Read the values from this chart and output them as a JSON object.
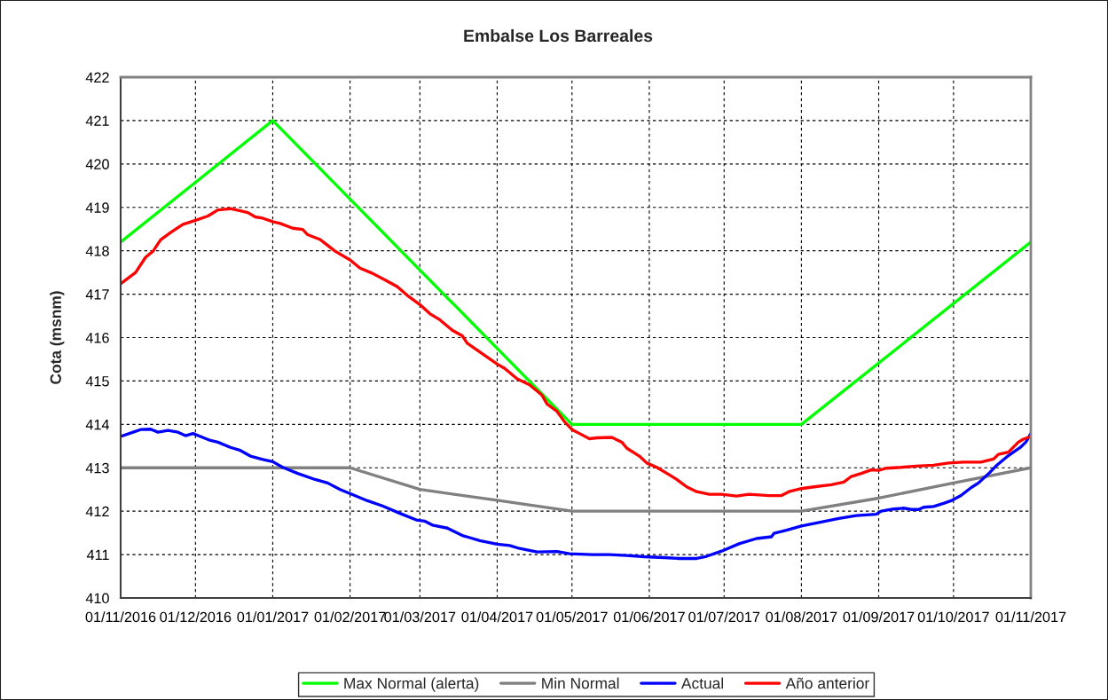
{
  "chart_data": {
    "type": "line",
    "title": "Embalse Los Barreales",
    "ylabel": "Cota (msnm)",
    "xlim": [
      "2016-11-01",
      "2017-11-01"
    ],
    "xticks": [
      {
        "value": "2016-11-01",
        "label": "01/11/2016"
      },
      {
        "value": "2016-12-01",
        "label": "01/12/2016"
      },
      {
        "value": "2017-01-01",
        "label": "01/01/2017"
      },
      {
        "value": "2017-02-01",
        "label": "01/02/2017"
      },
      {
        "value": "2017-03-01",
        "label": "01/03/2017"
      },
      {
        "value": "2017-04-01",
        "label": "01/04/2017"
      },
      {
        "value": "2017-05-01",
        "label": "01/05/2017"
      },
      {
        "value": "2017-06-01",
        "label": "01/06/2017"
      },
      {
        "value": "2017-07-01",
        "label": "01/07/2017"
      },
      {
        "value": "2017-08-01",
        "label": "01/08/2017"
      },
      {
        "value": "2017-09-01",
        "label": "01/09/2017"
      },
      {
        "value": "2017-10-01",
        "label": "01/10/2017"
      },
      {
        "value": "2017-11-01",
        "label": "01/11/2017"
      }
    ],
    "ylim": [
      410,
      422
    ],
    "yticks": [
      410,
      411,
      412,
      413,
      414,
      415,
      416,
      417,
      418,
      419,
      420,
      421,
      422
    ],
    "grid": true,
    "legend": "bottom",
    "line_style": "solid",
    "series": [
      {
        "name": "Max Normal (alerta)",
        "color": "#00ff00",
        "x": [
          "2016-11-01",
          "2017-01-01",
          "2017-05-01",
          "2017-08-01",
          "2017-11-01"
        ],
        "values": [
          418.2,
          421,
          414,
          414,
          418.2
        ]
      },
      {
        "name": "Min Normal",
        "color": "#808080",
        "x": [
          "2016-11-01",
          "2017-02-01",
          "2017-03-01",
          "2017-04-01",
          "2017-05-01",
          "2017-08-01",
          "2017-09-01",
          "2017-10-01",
          "2017-11-01"
        ],
        "values": [
          413,
          413,
          412.5,
          412.25,
          412,
          412,
          412.3,
          412.65,
          413
        ]
      },
      {
        "name": "Actual",
        "color": "#0000ff",
        "x": [
          "2016-11-01",
          "2016-11-06",
          "2016-11-09",
          "2016-11-13",
          "2016-11-16",
          "2016-11-20",
          "2016-11-24",
          "2016-11-27",
          "2016-11-30",
          "2016-12-03",
          "2016-12-07",
          "2016-12-10",
          "2016-12-15",
          "2016-12-19",
          "2016-12-23",
          "2016-12-28",
          "2017-01-01",
          "2017-01-05",
          "2017-01-11",
          "2017-01-18",
          "2017-01-23",
          "2017-01-28",
          "2017-02-02",
          "2017-02-08",
          "2017-02-14",
          "2017-02-21",
          "2017-02-28",
          "2017-03-03",
          "2017-03-06",
          "2017-03-12",
          "2017-03-18",
          "2017-03-21",
          "2017-03-25",
          "2017-04-01",
          "2017-04-06",
          "2017-04-10",
          "2017-04-17",
          "2017-04-25",
          "2017-04-30",
          "2017-05-09",
          "2017-05-16",
          "2017-05-23",
          "2017-05-30",
          "2017-06-07",
          "2017-06-13",
          "2017-06-20",
          "2017-06-24",
          "2017-06-30",
          "2017-07-07",
          "2017-07-14",
          "2017-07-20",
          "2017-07-21",
          "2017-07-26",
          "2017-08-01",
          "2017-08-09",
          "2017-08-16",
          "2017-08-23",
          "2017-08-31",
          "2017-09-02",
          "2017-09-07",
          "2017-09-11",
          "2017-09-14",
          "2017-09-17",
          "2017-09-19",
          "2017-09-23",
          "2017-09-27",
          "2017-09-30",
          "2017-10-04",
          "2017-10-08",
          "2017-10-11",
          "2017-10-15",
          "2017-10-18",
          "2017-10-23",
          "2017-10-28",
          "2017-10-30",
          "2017-11-01"
        ],
        "values": [
          413.72,
          413.82,
          413.88,
          413.89,
          413.82,
          413.86,
          413.82,
          413.74,
          413.79,
          413.72,
          413.63,
          413.59,
          413.47,
          413.4,
          413.27,
          413.19,
          413.14,
          413.01,
          412.87,
          412.73,
          412.65,
          412.5,
          412.38,
          412.24,
          412.12,
          411.95,
          411.79,
          411.77,
          411.68,
          411.61,
          411.44,
          411.39,
          411.32,
          411.24,
          411.21,
          411.14,
          411.06,
          411.07,
          411.02,
          411.0,
          411.0,
          410.98,
          410.95,
          410.93,
          410.91,
          410.91,
          410.96,
          411.08,
          411.25,
          411.37,
          411.41,
          411.49,
          411.56,
          411.66,
          411.75,
          411.83,
          411.9,
          411.93,
          412.0,
          412.05,
          412.07,
          412.04,
          412.04,
          412.09,
          412.11,
          412.18,
          412.24,
          412.36,
          412.54,
          412.65,
          412.86,
          413.04,
          413.28,
          413.48,
          413.59,
          413.79
        ]
      },
      {
        "name": "Año anterior",
        "color": "#ff0000",
        "x": [
          "2016-11-01",
          "2016-11-07",
          "2016-11-11",
          "2016-11-14",
          "2016-11-17",
          "2016-11-21",
          "2016-11-26",
          "2016-12-01",
          "2016-12-06",
          "2016-12-10",
          "2016-12-15",
          "2016-12-19",
          "2016-12-22",
          "2016-12-25",
          "2016-12-28",
          "2017-01-01",
          "2017-01-04",
          "2017-01-09",
          "2017-01-13",
          "2017-01-15",
          "2017-01-20",
          "2017-01-22",
          "2017-01-26",
          "2017-02-01",
          "2017-02-05",
          "2017-02-10",
          "2017-02-15",
          "2017-02-20",
          "2017-02-24",
          "2017-03-01",
          "2017-03-05",
          "2017-03-09",
          "2017-03-14",
          "2017-03-18",
          "2017-03-20",
          "2017-03-26",
          "2017-04-01",
          "2017-04-04",
          "2017-04-09",
          "2017-04-14",
          "2017-04-19",
          "2017-04-21",
          "2017-04-25",
          "2017-04-28",
          "2017-05-01",
          "2017-05-04",
          "2017-05-08",
          "2017-05-11",
          "2017-05-17",
          "2017-05-21",
          "2017-05-23",
          "2017-05-28",
          "2017-05-31",
          "2017-06-04",
          "2017-06-09",
          "2017-06-12",
          "2017-06-16",
          "2017-06-20",
          "2017-06-25",
          "2017-06-30",
          "2017-07-06",
          "2017-07-11",
          "2017-07-19",
          "2017-07-24",
          "2017-07-27",
          "2017-08-01",
          "2017-08-06",
          "2017-08-13",
          "2017-08-18",
          "2017-08-21",
          "2017-08-25",
          "2017-08-29",
          "2017-09-01",
          "2017-09-04",
          "2017-09-10",
          "2017-09-16",
          "2017-09-23",
          "2017-09-29",
          "2017-10-05",
          "2017-10-12",
          "2017-10-17",
          "2017-10-19",
          "2017-10-23",
          "2017-10-27",
          "2017-10-29",
          "2017-11-01"
        ],
        "values": [
          417.24,
          417.5,
          417.85,
          417.99,
          418.25,
          418.42,
          418.61,
          418.7,
          418.8,
          418.94,
          418.97,
          418.92,
          418.88,
          418.78,
          418.75,
          418.67,
          418.63,
          418.52,
          418.49,
          418.37,
          418.26,
          418.17,
          417.99,
          417.79,
          417.6,
          417.48,
          417.33,
          417.17,
          416.97,
          416.76,
          416.55,
          416.41,
          416.17,
          416.04,
          415.87,
          415.63,
          415.39,
          415.29,
          415.05,
          414.91,
          414.67,
          414.47,
          414.3,
          414.06,
          413.88,
          413.79,
          413.67,
          413.69,
          413.7,
          413.59,
          413.45,
          413.27,
          413.11,
          413.01,
          412.84,
          412.73,
          412.56,
          412.45,
          412.39,
          412.39,
          412.35,
          412.39,
          412.36,
          412.36,
          412.45,
          412.52,
          412.56,
          412.61,
          412.67,
          412.8,
          412.87,
          412.95,
          412.94,
          412.99,
          413.01,
          413.04,
          413.06,
          413.11,
          413.13,
          413.13,
          413.2,
          413.31,
          413.36,
          413.59,
          413.66,
          413.72
        ]
      }
    ]
  }
}
